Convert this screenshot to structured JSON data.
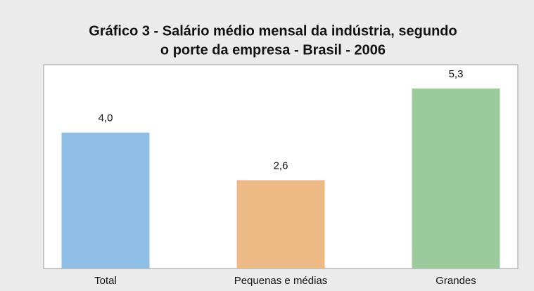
{
  "chart_data": {
    "type": "bar",
    "title": [
      "Gráfico 3 - Salário médio mensal da indústria, segundo",
      "o porte da empresa - Brasil - 2006"
    ],
    "categories": [
      "Total",
      "Pequenas e médias",
      "Grandes"
    ],
    "values": [
      4.0,
      2.6,
      5.3
    ],
    "value_labels": [
      "4,0",
      "2,6",
      "5,3"
    ],
    "colors": [
      "#8ebde6",
      "#edb985",
      "#9bcb9d"
    ],
    "ylim": [
      0,
      6
    ]
  }
}
